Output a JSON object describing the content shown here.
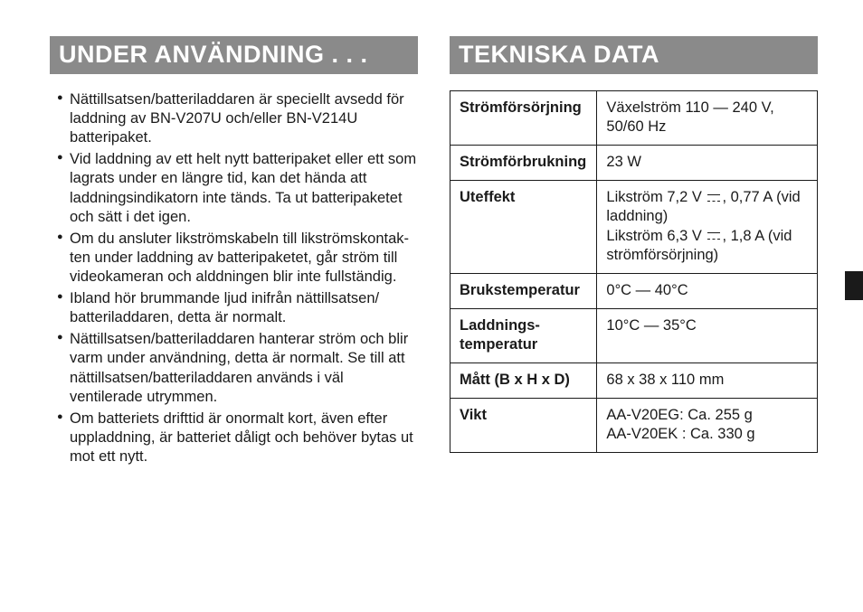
{
  "left": {
    "heading": "UNDER ANVÄNDNING . . .",
    "bullets": [
      "Nättillsatsen/batteriladdaren är speciellt avsedd för laddning av BN-V207U och/eller BN-V214U batteripaket.",
      "Vid laddning av ett helt nytt batteripaket eller ett som lagrats under en längre tid, kan det hända att laddningsindikatorn inte tänds. Ta ut batteripaketet och sätt i det igen.",
      "Om du ansluter likströmskabeln till likströmskontak- ten under laddning av batteripaketet, går ström till videokameran och alddningen blir inte fullständig.",
      "Ibland hör brummande ljud inifrån nättillsatsen/ batteriladdaren, detta är normalt.",
      "Nättillsatsen/batteriladdaren hanterar ström och blir varm under användning, detta är normalt. Se till att nättillsatsen/batteriladdaren används i väl ventilerade utrymmen.",
      "Om batteriets drifttid är onormalt kort, även efter uppladdning, är batteriet dåligt och behöver bytas ut mot ett nytt."
    ]
  },
  "right": {
    "heading": "TEKNISKA DATA",
    "rows": [
      {
        "label": "Strömförsörjning",
        "value_html": "Växelström 110 — 240 V, 50/60 Hz"
      },
      {
        "label": "Strömförbrukning",
        "value_html": "23 W"
      },
      {
        "label": "Uteffekt",
        "value_html": "Likström 7,2 V {{DC}}, 0,77 A (vid laddning)<br>Likström 6,3 V {{DC}}, 1,8 A (vid strömförsörjning)"
      },
      {
        "label": "Brukstemperatur",
        "value_html": "0°C — 40°C"
      },
      {
        "label": "Laddnings-<br>temperatur",
        "value_html": "10°C — 35°C"
      },
      {
        "label": "Mått (B x H x D)",
        "value_html": "68 x 38 x 110 mm"
      },
      {
        "label": "Vikt",
        "value_html": "AA-V20EG: Ca. 255 g<br>AA-V20EK : Ca. 330 g"
      }
    ]
  },
  "colors": {
    "heading_bg": "#8a8a8a",
    "heading_fg": "#ffffff",
    "text": "#1a1a1a",
    "page_bg": "#ffffff"
  }
}
